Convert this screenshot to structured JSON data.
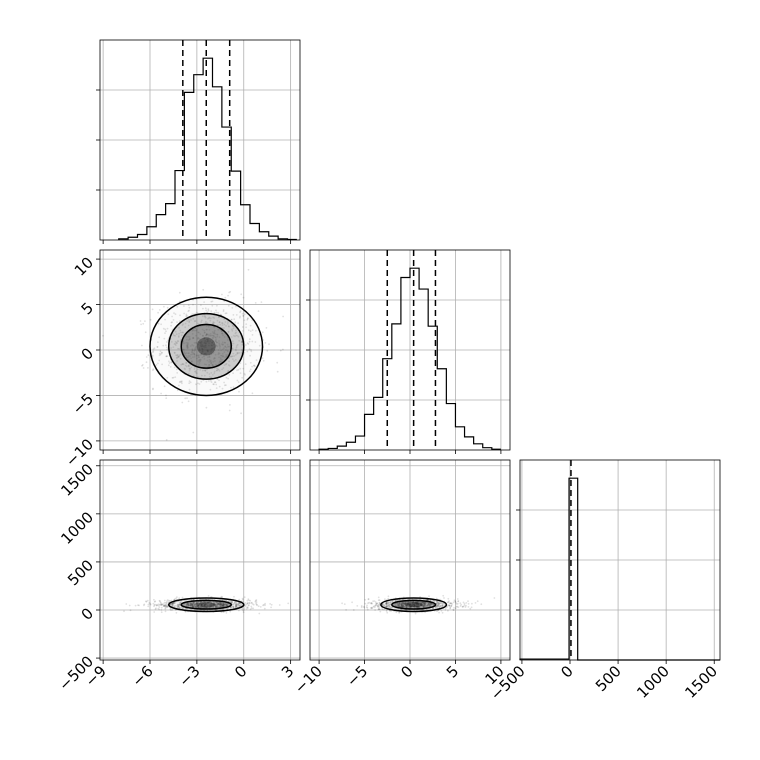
{
  "chart_data": {
    "type": "corner",
    "title": "",
    "parameters": [
      {
        "ticks": [
          -9,
          -6,
          -3,
          0,
          3
        ],
        "range": [
          -9.2,
          3.6
        ],
        "quantiles": [
          -3.9,
          -2.4,
          -0.9
        ],
        "hist_bins": [
          -8,
          -7.4,
          -6.8,
          -6.2,
          -5.6,
          -5.0,
          -4.4,
          -3.8,
          -3.2,
          -2.6,
          -2.0,
          -1.4,
          -0.8,
          -0.2,
          0.4,
          1.0,
          1.6,
          2.2,
          2.8,
          3.4
        ],
        "hist_counts": [
          2,
          5,
          10,
          24,
          46,
          66,
          126,
          268,
          300,
          330,
          278,
          205,
          125,
          64,
          30,
          15,
          7,
          2,
          1
        ],
        "contour_center": -2.4,
        "contour_radii": [
          0.6,
          1.6,
          2.4,
          3.6
        ]
      },
      {
        "ticks": [
          -10,
          -5,
          0,
          5,
          10
        ],
        "range": [
          -11,
          11
        ],
        "quantiles": [
          -2.5,
          0.4,
          2.8
        ],
        "hist_bins": [
          -10,
          -9,
          -8,
          -7,
          -6,
          -5,
          -4,
          -3,
          -2,
          -1,
          0,
          1,
          2,
          3,
          4,
          5,
          6,
          7,
          8,
          9,
          10
        ],
        "hist_counts": [
          1,
          2,
          5,
          10,
          18,
          46,
          68,
          118,
          163,
          223,
          235,
          208,
          160,
          105,
          60,
          30,
          17,
          8,
          3,
          1
        ],
        "contour_center": 0.4,
        "contour_radii": [
          1.0,
          2.4,
          3.6,
          5.4
        ]
      },
      {
        "ticks": [
          -500,
          0,
          500,
          1000,
          1500
        ],
        "range": [
          -520,
          1560
        ],
        "quantiles": [
          10
        ],
        "hist_bins": [
          -550,
          -10,
          80,
          1560
        ],
        "hist_counts": [
          2,
          390,
          0
        ],
        "contour_center": 55,
        "contour_radii": [
          25,
          45,
          70
        ]
      }
    ]
  }
}
